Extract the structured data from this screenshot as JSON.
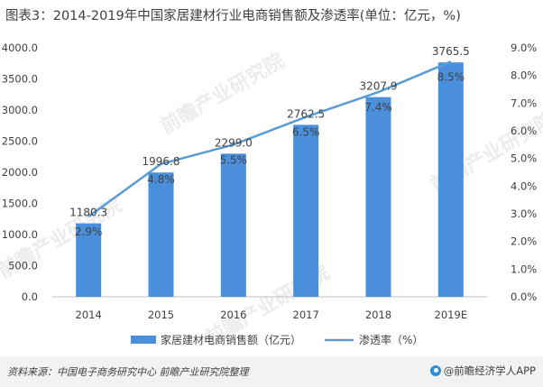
{
  "header": {
    "title": "图表3：2014-2019年中国家居建材行业电商销售额及渗透率(单位：亿元，%)"
  },
  "chart_data": {
    "type": "bar",
    "title": "图表3：2014-2019年中国家居建材行业电商销售额及渗透率(单位：亿元，%)",
    "categories": [
      "2014",
      "2015",
      "2016",
      "2017",
      "2018",
      "2019E"
    ],
    "series": [
      {
        "name": "家居建材电商销售额（亿元）",
        "type": "bar",
        "axis": "left",
        "values": [
          1180.3,
          1996.8,
          2299.0,
          2762.5,
          3207.9,
          3765.5
        ],
        "labels": [
          "1180.3",
          "1996.8",
          "2299.0",
          "2762.5",
          "3207.9",
          "3765.5"
        ],
        "color": "#4a8fdc"
      },
      {
        "name": "渗透率（%）",
        "type": "line",
        "axis": "right",
        "values": [
          2.9,
          4.8,
          5.5,
          6.5,
          7.4,
          8.5
        ],
        "labels": [
          "2.9%",
          "4.8%",
          "5.5%",
          "6.5%",
          "7.4%",
          "8.5%"
        ],
        "color": "#5b9bd5"
      }
    ],
    "y_left": {
      "range": [
        0,
        4000
      ],
      "ticks": [
        "0.0",
        "500.0",
        "1000.0",
        "1500.0",
        "2000.0",
        "2500.0",
        "3000.0",
        "3500.0",
        "4000.0"
      ]
    },
    "y_right": {
      "range": [
        0,
        9
      ],
      "ticks": [
        "0.0%",
        "1.0%",
        "2.0%",
        "3.0%",
        "4.0%",
        "5.0%",
        "6.0%",
        "7.0%",
        "8.0%",
        "9.0%"
      ]
    },
    "grid": false,
    "legend_position": "bottom"
  },
  "watermark": {
    "text": "前瞻产业研究院"
  },
  "footer": {
    "source": "资料来源：中国电子商务研究中心 前瞻产业研究院整理",
    "brand": "@前瞻经济学人APP",
    "icon": "qianzhan-logo-icon"
  }
}
